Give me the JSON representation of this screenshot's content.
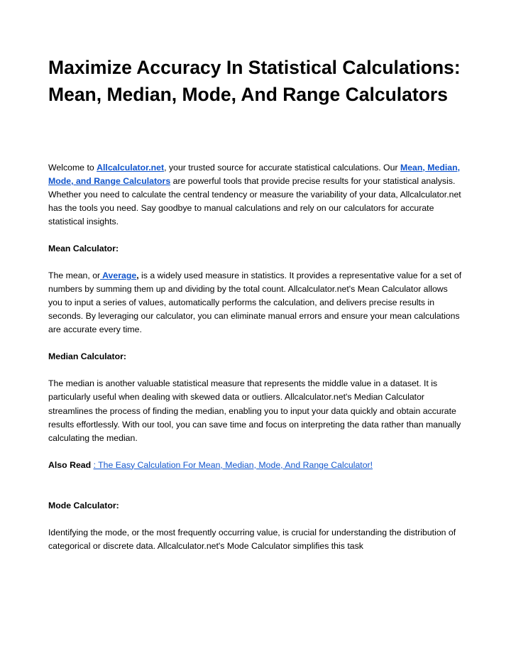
{
  "title": "Maximize Accuracy In Statistical Calculations: Mean, Median, Mode, And Range Calculators",
  "intro": {
    "pre": "Welcome to ",
    "link1": "Allcalculator.net",
    "mid1": ", your trusted source for accurate statistical calculations. Our ",
    "link2": "Mean, Median, Mode, and Range Calculators",
    "post": " are powerful tools that provide precise results for your statistical analysis. Whether you need to calculate the central tendency or measure the variability of your data, Allcalculator.net has the tools you need. Say goodbye to manual calculations and rely on our calculators for accurate statistical insights."
  },
  "mean": {
    "label": "Mean Calculator:",
    "pre": "The mean, or",
    "link": " Average",
    "comma": ",",
    "post": " is a widely used measure in statistics. It provides a representative value for a set of numbers by summing them up and dividing by the total count. Allcalculator.net's Mean Calculator allows you to input a series of values, automatically performs the calculation, and delivers precise results in seconds. By leveraging our calculator, you can eliminate manual errors and ensure your mean calculations are accurate every time."
  },
  "median": {
    "label": "Median Calculator:",
    "body": "The median is another valuable statistical measure that represents the middle value in a dataset. It is particularly useful when dealing with skewed data or outliers. Allcalculator.net's Median Calculator streamlines the process of finding the median, enabling you to input your data quickly and obtain accurate results effortlessly. With our tool, you can save time and focus on interpreting the data rather than manually calculating the median."
  },
  "alsoRead": {
    "label": "Also Read ",
    "link": ": The Easy Calculation For Mean, Median, Mode, And Range Calculator!"
  },
  "mode": {
    "label": "Mode Calculator:",
    "body": "Identifying the mode, or the most frequently occurring value, is crucial for understanding the distribution of categorical or discrete data. Allcalculator.net's Mode Calculator simplifies this task"
  }
}
